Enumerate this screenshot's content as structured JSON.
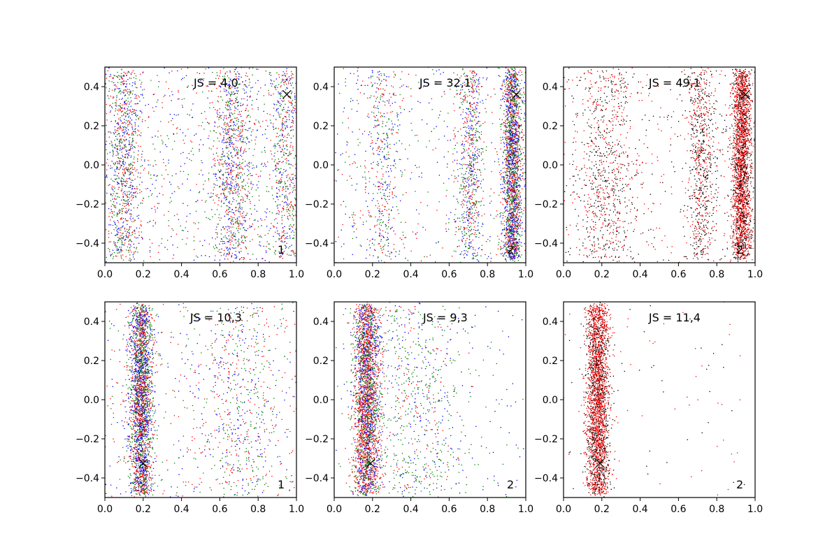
{
  "chart_data": [
    {
      "type": "scatter",
      "title": "JS = 4,0",
      "panel_label": "1",
      "xlim": [
        0.0,
        1.0
      ],
      "ylim": [
        -0.5,
        0.5
      ],
      "xticks": [
        0.0,
        0.2,
        0.4,
        0.6,
        0.8,
        1.0
      ],
      "yticks": [
        -0.4,
        -0.2,
        0.0,
        0.2,
        0.4
      ],
      "grid": false,
      "marker": {
        "x": 0.95,
        "y": 0.36
      },
      "clusters": [
        {
          "x": 0.1,
          "sx": 0.045,
          "sy": 0.2,
          "n": 900,
          "colors": [
            "#0000ff",
            "#008000",
            "#ff0000"
          ]
        },
        {
          "x": 0.67,
          "sx": 0.05,
          "sy": 0.2,
          "n": 900,
          "colors": [
            "#0000ff",
            "#008000",
            "#ff0000"
          ]
        },
        {
          "x": 0.94,
          "sx": 0.04,
          "sy": 0.2,
          "n": 500,
          "colors": [
            "#0000ff",
            "#008000",
            "#ff0000"
          ]
        },
        {
          "uniform": true,
          "n": 900,
          "colors": [
            "#0000ff",
            "#008000",
            "#ff0000"
          ]
        }
      ]
    },
    {
      "type": "scatter",
      "title": "JS = 32,1",
      "panel_label": "2",
      "xlim": [
        0.0,
        1.0
      ],
      "ylim": [
        -0.5,
        0.5
      ],
      "xticks": [
        0.0,
        0.2,
        0.4,
        0.6,
        0.8,
        1.0
      ],
      "yticks": [
        -0.4,
        -0.2,
        0.0,
        0.2,
        0.4
      ],
      "grid": false,
      "marker": {
        "x": 0.95,
        "y": 0.36
      },
      "clusters": [
        {
          "x": 0.25,
          "sx": 0.05,
          "sy": 0.2,
          "n": 400,
          "colors": [
            "#0000ff",
            "#008000",
            "#ff0000"
          ]
        },
        {
          "x": 0.71,
          "sx": 0.035,
          "sy": 0.2,
          "n": 700,
          "colors": [
            "#0000ff",
            "#008000",
            "#ff0000"
          ]
        },
        {
          "x": 0.93,
          "sx": 0.025,
          "sy": 0.2,
          "n": 2200,
          "colors": [
            "#008000",
            "#0000ff",
            "#ff0000"
          ]
        },
        {
          "uniform": true,
          "n": 500,
          "colors": [
            "#0000ff",
            "#008000",
            "#ff0000"
          ]
        }
      ]
    },
    {
      "type": "scatter",
      "title": "JS = 49,1",
      "panel_label": "2",
      "xlim": [
        0.0,
        1.0
      ],
      "ylim": [
        -0.5,
        0.5
      ],
      "xticks": [
        0.0,
        0.2,
        0.4,
        0.6,
        0.8,
        1.0
      ],
      "yticks": [
        -0.4,
        -0.2,
        0.0,
        0.2,
        0.4
      ],
      "grid": false,
      "marker": {
        "x": 0.95,
        "y": 0.36
      },
      "clusters": [
        {
          "x": 0.22,
          "sx": 0.08,
          "sy": 0.2,
          "n": 700,
          "colors": [
            "#000000",
            "#ff0000"
          ]
        },
        {
          "x": 0.72,
          "sx": 0.035,
          "sy": 0.2,
          "n": 700,
          "colors": [
            "#ff0000",
            "#000000"
          ]
        },
        {
          "x": 0.93,
          "sx": 0.025,
          "sy": 0.2,
          "n": 2400,
          "colors": [
            "#ff0000",
            "#ff0000",
            "#000000"
          ]
        },
        {
          "uniform": true,
          "n": 500,
          "colors": [
            "#000000",
            "#ff0000"
          ]
        }
      ]
    },
    {
      "type": "scatter",
      "title": "JS = 10,3",
      "panel_label": "1",
      "xlim": [
        0.0,
        1.0
      ],
      "ylim": [
        -0.5,
        0.5
      ],
      "xticks": [
        0.0,
        0.2,
        0.4,
        0.6,
        0.8,
        1.0
      ],
      "yticks": [
        -0.4,
        -0.2,
        0.0,
        0.2,
        0.4
      ],
      "grid": false,
      "marker": {
        "x": 0.2,
        "y": -0.325
      },
      "clusters": [
        {
          "x": 0.19,
          "sx": 0.03,
          "sy": 0.2,
          "n": 2600,
          "colors": [
            "#008000",
            "#0000ff",
            "#ff0000"
          ]
        },
        {
          "x": 0.7,
          "sx": 0.1,
          "sy": 0.2,
          "n": 500,
          "colors": [
            "#0000ff",
            "#008000",
            "#ff0000"
          ]
        },
        {
          "uniform": true,
          "n": 500,
          "colors": [
            "#0000ff",
            "#008000",
            "#ff0000"
          ]
        }
      ]
    },
    {
      "type": "scatter",
      "title": "JS = 9,3",
      "panel_label": "2",
      "xlim": [
        0.0,
        1.0
      ],
      "ylim": [
        -0.5,
        0.5
      ],
      "xticks": [
        0.0,
        0.2,
        0.4,
        0.6,
        0.8,
        1.0
      ],
      "yticks": [
        -0.4,
        -0.2,
        0.0,
        0.2,
        0.4
      ],
      "grid": false,
      "marker": {
        "x": 0.19,
        "y": -0.325
      },
      "clusters": [
        {
          "x": 0.17,
          "sx": 0.035,
          "sy": 0.2,
          "n": 2800,
          "colors": [
            "#0000ff",
            "#008000",
            "#ff0000",
            "#ff0000"
          ]
        },
        {
          "x": 0.42,
          "sx": 0.14,
          "sy": 0.2,
          "n": 700,
          "colors": [
            "#008000",
            "#008000",
            "#0000ff",
            "#ff0000"
          ]
        },
        {
          "uniform": true,
          "n": 200,
          "colors": [
            "#008000",
            "#0000ff"
          ]
        }
      ]
    },
    {
      "type": "scatter",
      "title": "JS = 11,4",
      "panel_label": "2",
      "xlim": [
        0.0,
        1.0
      ],
      "ylim": [
        -0.5,
        0.5
      ],
      "xticks": [
        0.0,
        0.2,
        0.4,
        0.6,
        0.8,
        1.0
      ],
      "yticks": [
        -0.4,
        -0.2,
        0.0,
        0.2,
        0.4
      ],
      "grid": false,
      "marker": {
        "x": 0.19,
        "y": -0.325
      },
      "clusters": [
        {
          "x": 0.18,
          "sx": 0.03,
          "sy": 0.2,
          "n": 2600,
          "colors": [
            "#ff0000",
            "#ff0000",
            "#000000"
          ]
        },
        {
          "uniform": true,
          "n": 90,
          "colors": [
            "#ff0000",
            "#000000"
          ]
        }
      ]
    }
  ]
}
